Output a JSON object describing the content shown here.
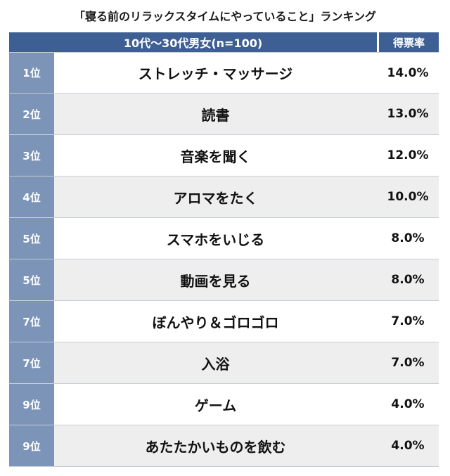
{
  "title": "「寝る前のリラックスタイムにやっていること」ランキング",
  "header": {
    "group": "10代〜30代男女(n=100)",
    "rate_label": "得票率"
  },
  "rows": [
    {
      "rank": "1位",
      "name": "ストレッチ・マッサージ",
      "rate": "14.0%"
    },
    {
      "rank": "2位",
      "name": "読書",
      "rate": "13.0%"
    },
    {
      "rank": "3位",
      "name": "音楽を聞く",
      "rate": "12.0%"
    },
    {
      "rank": "4位",
      "name": "アロマをたく",
      "rate": "10.0%"
    },
    {
      "rank": "5位",
      "name": "スマホをいじる",
      "rate": "8.0%"
    },
    {
      "rank": "5位",
      "name": "動画を見る",
      "rate": "8.0%"
    },
    {
      "rank": "7位",
      "name": "ぼんやり＆ゴロゴロ",
      "rate": "7.0%"
    },
    {
      "rank": "7位",
      "name": "入浴",
      "rate": "7.0%"
    },
    {
      "rank": "9位",
      "name": "ゲーム",
      "rate": "4.0%"
    },
    {
      "rank": "9位",
      "name": "あたたかいものを飲む",
      "rate": "4.0%"
    }
  ],
  "colors": {
    "header_bg": "#3e5f93",
    "rank_bg": "#7b94b8",
    "row_alt_bg": "#eeeeee"
  }
}
